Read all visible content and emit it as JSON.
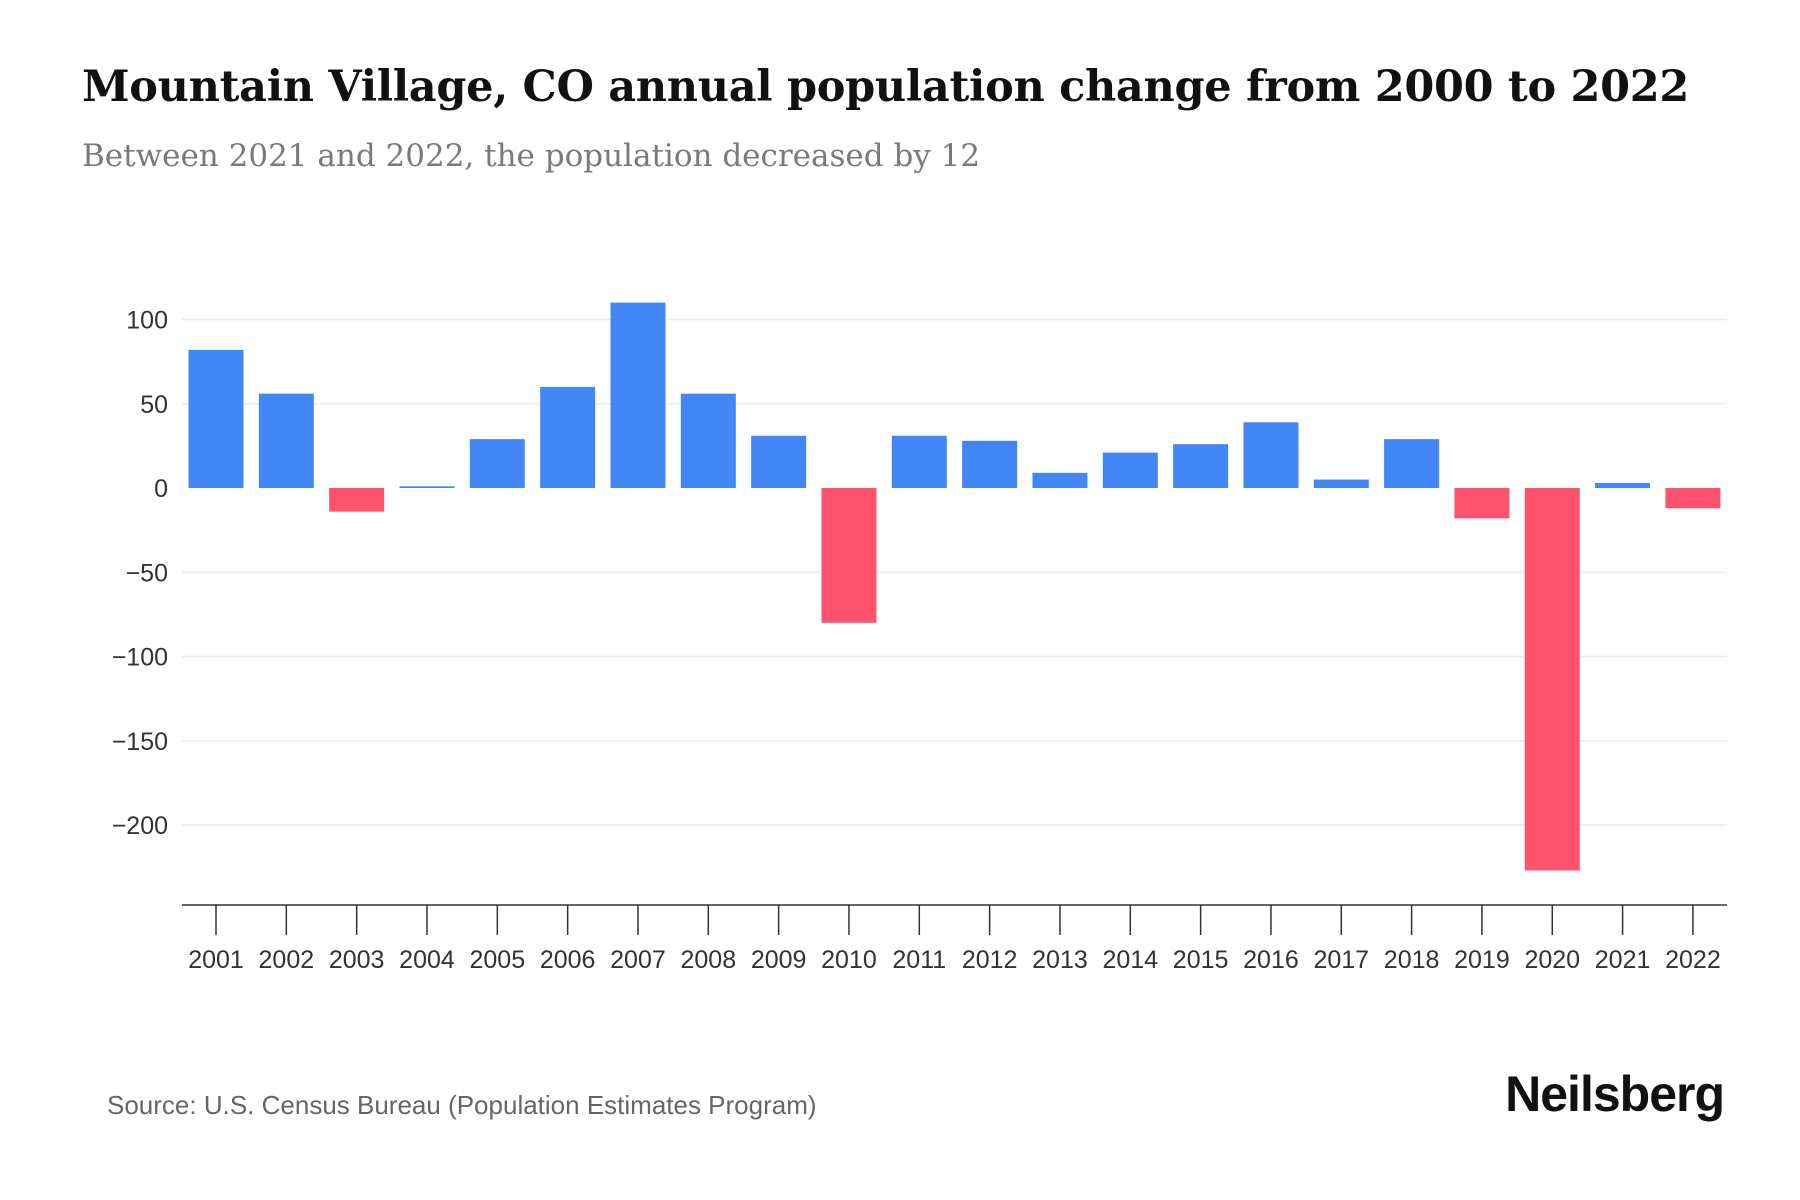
{
  "title": "Mountain Village, CO annual population change from 2000 to 2022",
  "subtitle": "Between 2021 and 2022, the population decreased by 12",
  "source": "Source: U.S. Census Bureau (Population Estimates Program)",
  "logo": "Neilsberg",
  "colors": {
    "positive": "#4287f5",
    "negative": "#ff526c"
  },
  "chart_data": {
    "type": "bar",
    "title": "Mountain Village, CO annual population change from 2000 to 2022",
    "xlabel": "",
    "ylabel": "",
    "categories": [
      "2001",
      "2002",
      "2003",
      "2004",
      "2005",
      "2006",
      "2007",
      "2008",
      "2009",
      "2010",
      "2011",
      "2012",
      "2013",
      "2014",
      "2015",
      "2016",
      "2017",
      "2018",
      "2019",
      "2020",
      "2021",
      "2022"
    ],
    "values": [
      82,
      56,
      -14,
      1,
      29,
      60,
      110,
      56,
      31,
      -80,
      31,
      28,
      9,
      21,
      26,
      39,
      5,
      29,
      -18,
      -227,
      3,
      -12
    ],
    "ylim": [
      -245,
      115
    ],
    "yticks": [
      100,
      50,
      0,
      -50,
      -100,
      -150,
      -200
    ],
    "ytick_labels": [
      "100",
      "50",
      "0",
      "−50",
      "−100",
      "−150",
      "−200"
    ],
    "grid": true,
    "legend": "none"
  }
}
